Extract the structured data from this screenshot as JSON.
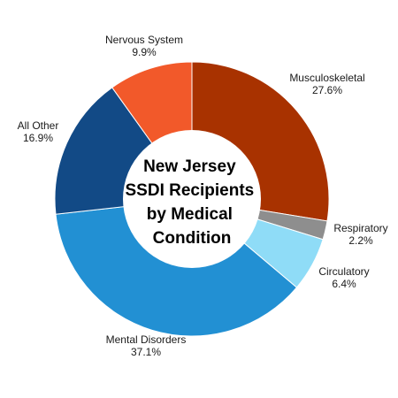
{
  "chart_data": {
    "type": "pie",
    "variant": "donut",
    "title_lines": [
      "New Jersey",
      "SSDI Recipients",
      "by Medical",
      "Condition"
    ],
    "slices": [
      {
        "label": "Musculoskeletal",
        "value": 27.6,
        "value_label": "27.6%",
        "color": "#a83200"
      },
      {
        "label": "Respiratory",
        "value": 2.2,
        "value_label": "2.2%",
        "color": "#8e8e8e"
      },
      {
        "label": "Circulatory",
        "value": 6.4,
        "value_label": "6.4%",
        "color": "#8fdcf7"
      },
      {
        "label": "Mental Disorders",
        "value": 37.1,
        "value_label": "37.1%",
        "color": "#2290d3"
      },
      {
        "label": "All Other",
        "value": 16.9,
        "value_label": "16.9%",
        "color": "#124a86"
      },
      {
        "label": "Nervous System",
        "value": 9.9,
        "value_label": "9.9%",
        "color": "#f2592a"
      }
    ]
  }
}
